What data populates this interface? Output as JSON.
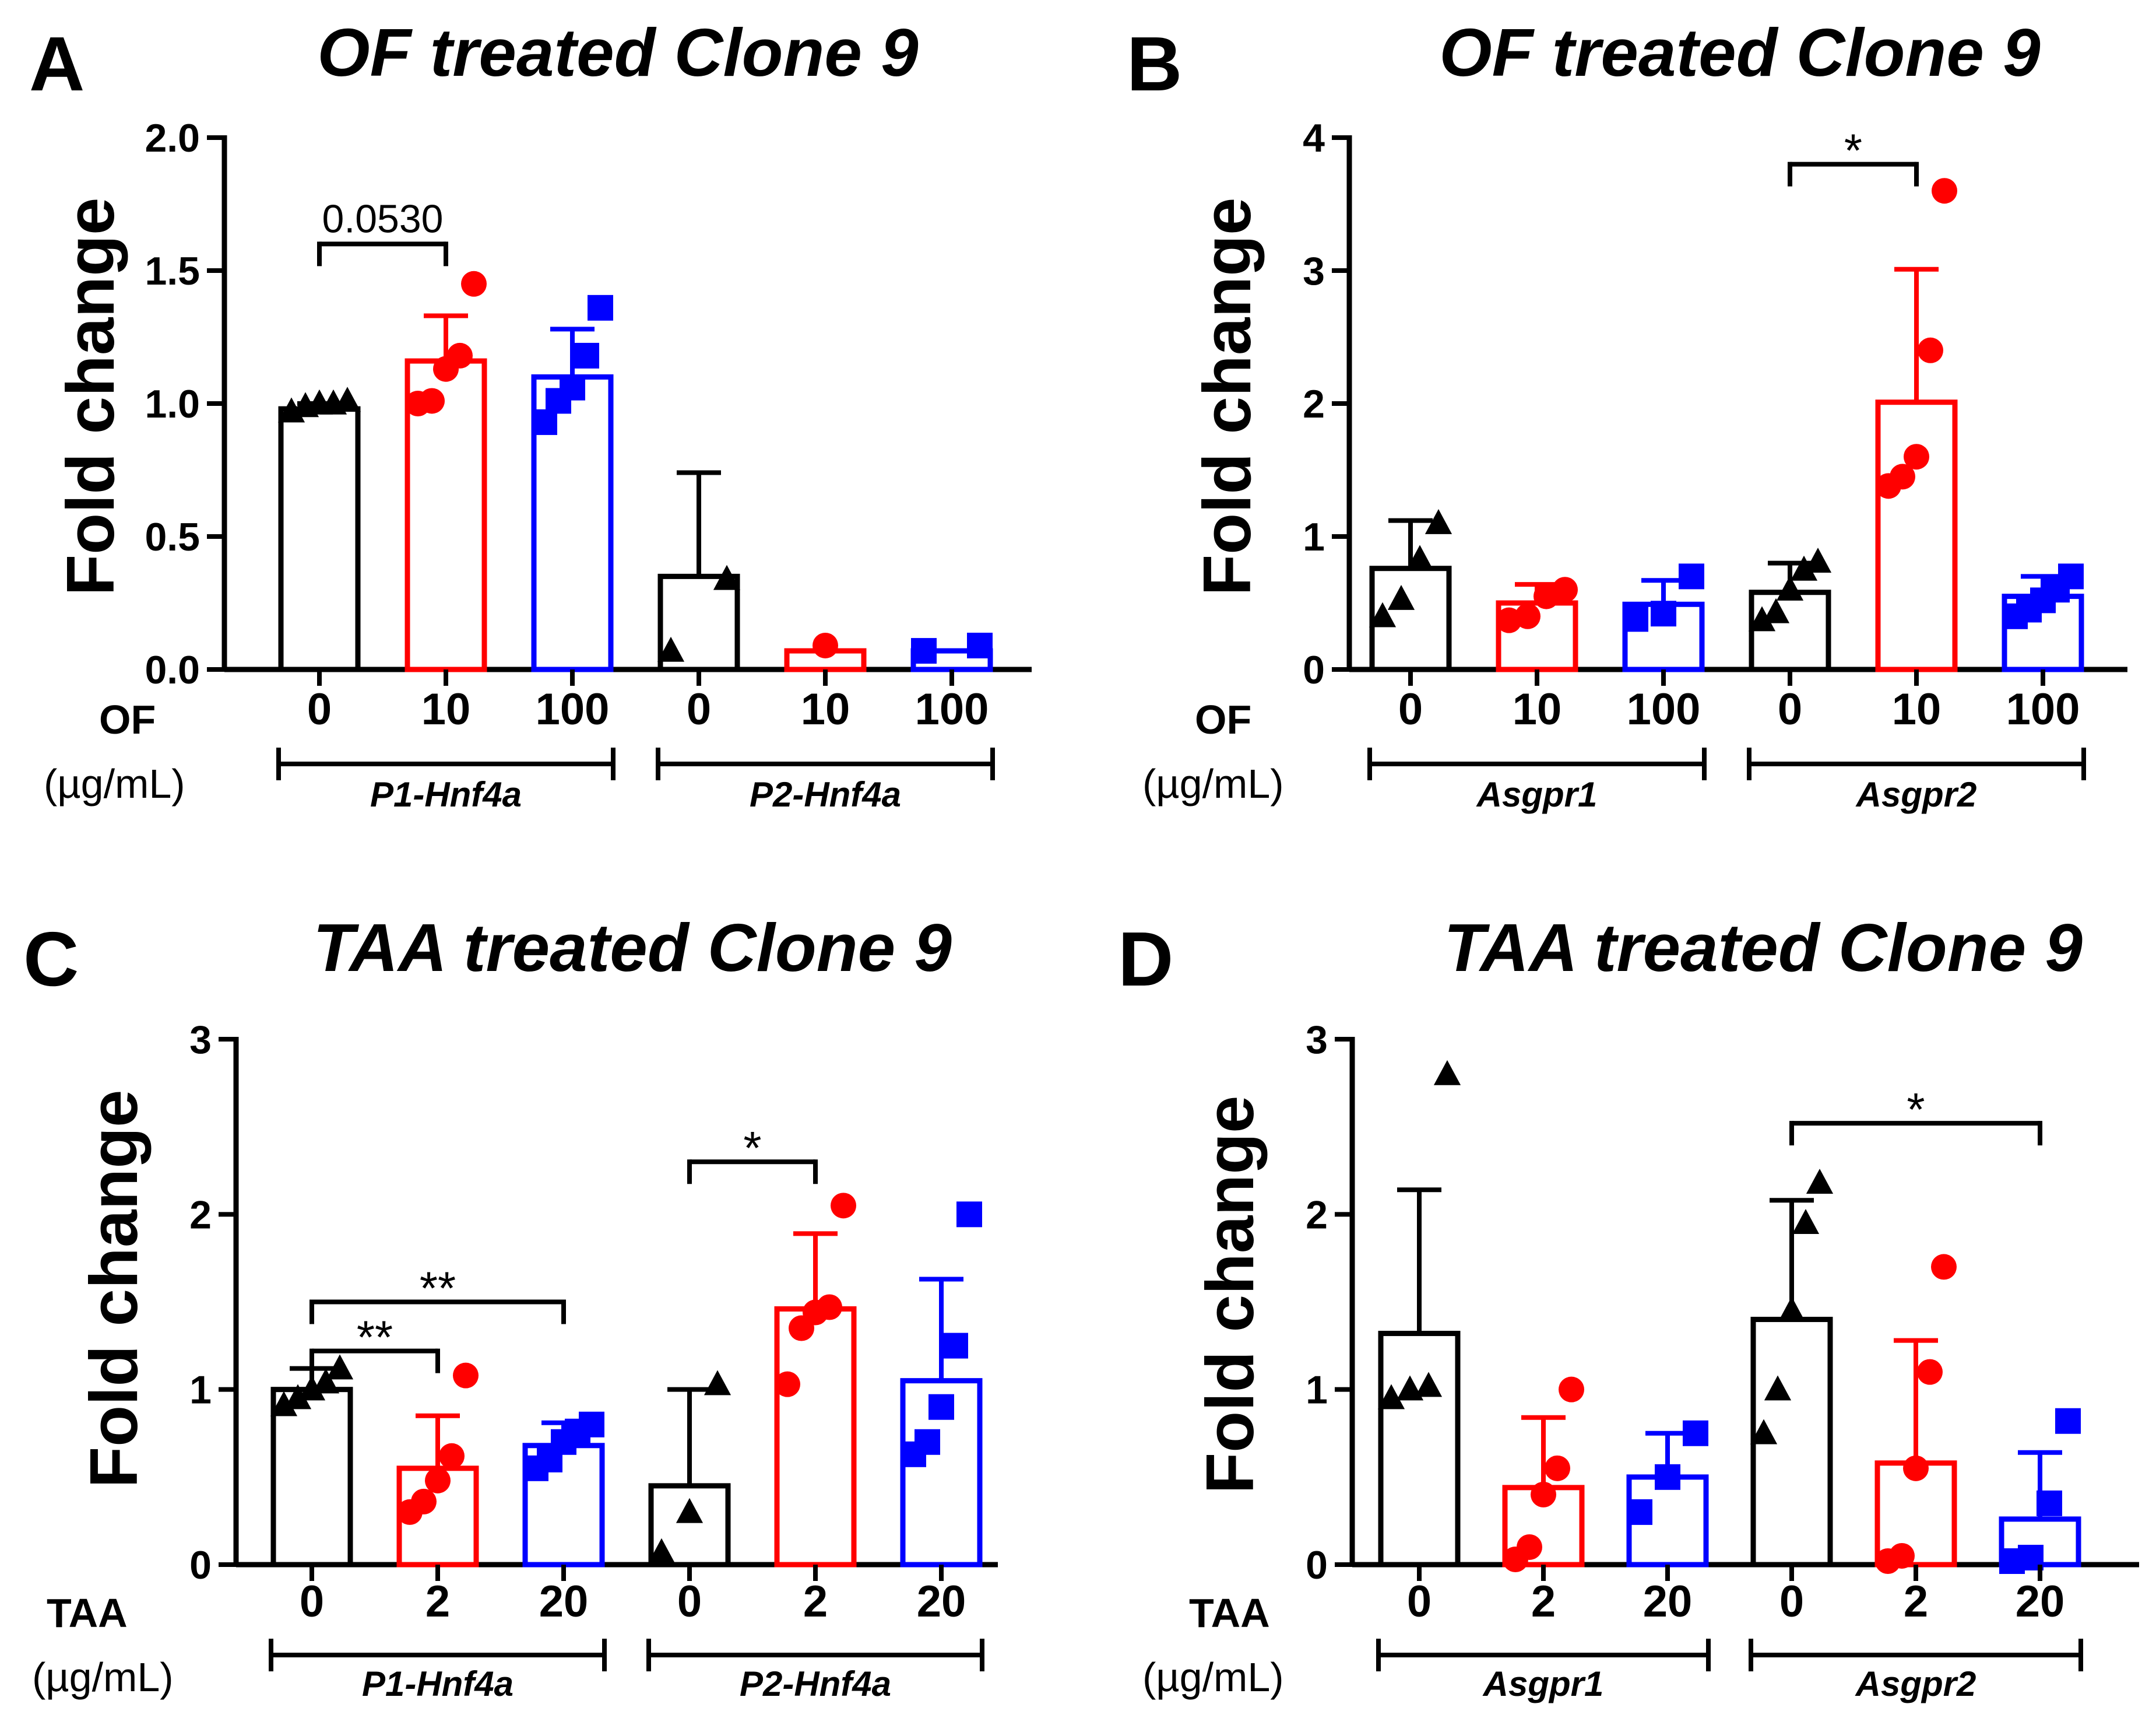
{
  "colors": {
    "control": "#000000",
    "low": "#ff0000",
    "high": "#0000ff",
    "axis": "#000000"
  },
  "chart_data": [
    {
      "type": "bar",
      "panel": "A",
      "title": "OF treated Clone 9",
      "ylabel": "Fold change",
      "ylim": [
        0,
        2.0
      ],
      "yticks": [
        0,
        0.5,
        1.0,
        1.5,
        2.0
      ],
      "ytick_labels": [
        "0.0",
        "0.5",
        "1.0",
        "1.5",
        "2.0"
      ],
      "treatment": "OF",
      "unit": "(µg/mL)",
      "categories": [
        "0",
        "10",
        "100",
        "0",
        "10",
        "100"
      ],
      "groups": [
        "P1-Hnf4a",
        "P2-Hnf4a"
      ],
      "series_colors": [
        "control",
        "low",
        "high",
        "control",
        "low",
        "high"
      ],
      "means": [
        0.98,
        1.16,
        1.1,
        0.35,
        0.07,
        0.07
      ],
      "sd": [
        0.02,
        0.17,
        0.18,
        0.39,
        0,
        0
      ],
      "points": [
        [
          0.97,
          0.99,
          1.0,
          1.0,
          1.01
        ],
        [
          1.0,
          1.01,
          1.13,
          1.18,
          1.45
        ],
        [
          0.93,
          1.01,
          1.06,
          1.18,
          1.36
        ],
        [
          0.07,
          0.34
        ],
        [
          0.09
        ],
        [
          0.07,
          0.09
        ]
      ],
      "markers": [
        "triangle",
        "circle",
        "square",
        "triangle",
        "circle",
        "square"
      ],
      "significance": [
        {
          "from": 0,
          "to": 1,
          "label": "0.0530",
          "y": 1.6
        }
      ]
    },
    {
      "type": "bar",
      "panel": "B",
      "title": "OF treated Clone 9",
      "ylabel": "Fold change",
      "ylim": [
        0,
        4
      ],
      "yticks": [
        0,
        1,
        2,
        3,
        4
      ],
      "ytick_labels": [
        "0",
        "1",
        "2",
        "3",
        "4"
      ],
      "treatment": "OF",
      "unit": "(µg/mL)",
      "categories": [
        "0",
        "10",
        "100",
        "0",
        "10",
        "100"
      ],
      "groups": [
        "Asgpr1",
        "Asgpr2"
      ],
      "series_colors": [
        "control",
        "low",
        "high",
        "control",
        "low",
        "high"
      ],
      "means": [
        0.76,
        0.5,
        0.49,
        0.58,
        2.01,
        0.55
      ],
      "sd": [
        0.36,
        0.14,
        0.18,
        0.22,
        1.0,
        0.15
      ],
      "points": [
        [
          0.4,
          0.53,
          0.83,
          1.1
        ],
        [
          0.37,
          0.4,
          0.55,
          0.6
        ],
        [
          0.38,
          0.42,
          0.7
        ],
        [
          0.37,
          0.43,
          0.6,
          0.75,
          0.81
        ],
        [
          1.38,
          1.45,
          1.6,
          2.4,
          3.6
        ],
        [
          0.4,
          0.45,
          0.52,
          0.6,
          0.7
        ]
      ],
      "markers": [
        "triangle",
        "circle",
        "square",
        "triangle",
        "circle",
        "square"
      ],
      "significance": [
        {
          "from": 3,
          "to": 4,
          "label": "*",
          "y": 3.8
        }
      ]
    },
    {
      "type": "bar",
      "panel": "C",
      "title": "TAA treated Clone 9",
      "ylabel": "Fold change",
      "ylim": [
        0,
        3
      ],
      "yticks": [
        0,
        1,
        2,
        3
      ],
      "ytick_labels": [
        "0",
        "1",
        "2",
        "3"
      ],
      "treatment": "TAA",
      "unit": "(µg/mL)",
      "categories": [
        "0",
        "2",
        "20",
        "0",
        "2",
        "20"
      ],
      "groups": [
        "P1-Hnf4a",
        "P2-Hnf4a"
      ],
      "series_colors": [
        "control",
        "low",
        "high",
        "control",
        "low",
        "high"
      ],
      "means": [
        1.0,
        0.55,
        0.68,
        0.45,
        1.46,
        1.05
      ],
      "sd": [
        0.12,
        0.3,
        0.13,
        0.55,
        0.43,
        0.58
      ],
      "points": [
        [
          0.91,
          0.95,
          1.0,
          1.04,
          1.12
        ],
        [
          0.3,
          0.36,
          0.48,
          0.62,
          1.08
        ],
        [
          0.55,
          0.6,
          0.7,
          0.76,
          0.8
        ],
        [
          0.07,
          0.3,
          1.03
        ],
        [
          1.03,
          1.35,
          1.44,
          1.47,
          2.05
        ],
        [
          0.63,
          0.7,
          0.9,
          1.25,
          2.0
        ]
      ],
      "markers": [
        "triangle",
        "circle",
        "square",
        "triangle",
        "circle",
        "square"
      ],
      "significance": [
        {
          "from": 0,
          "to": 1,
          "label": "**",
          "y": 1.22
        },
        {
          "from": 0,
          "to": 2,
          "label": "**",
          "y": 1.5
        },
        {
          "from": 3,
          "to": 4,
          "label": "*",
          "y": 2.3
        }
      ]
    },
    {
      "type": "bar",
      "panel": "D",
      "title": "TAA treated Clone 9",
      "ylabel": "Fold change",
      "ylim": [
        0,
        3
      ],
      "yticks": [
        0,
        1,
        2,
        3
      ],
      "ytick_labels": [
        "0",
        "1",
        "2",
        "3"
      ],
      "treatment": "TAA",
      "unit": "(µg/mL)",
      "categories": [
        "0",
        "2",
        "20",
        "0",
        "2",
        "20"
      ],
      "groups": [
        "Asgpr1",
        "Asgpr2"
      ],
      "series_colors": [
        "control",
        "low",
        "high",
        "control",
        "low",
        "high"
      ],
      "means": [
        1.32,
        0.44,
        0.5,
        1.4,
        0.58,
        0.26
      ],
      "sd": [
        0.82,
        0.4,
        0.25,
        0.68,
        0.7,
        0.38
      ],
      "points": [
        [
          0.95,
          1.0,
          1.02,
          2.8
        ],
        [
          0.03,
          0.1,
          0.4,
          0.55,
          1.0
        ],
        [
          0.3,
          0.5,
          0.75
        ],
        [
          0.75,
          1.0,
          1.45,
          1.95,
          2.18
        ],
        [
          0.02,
          0.05,
          0.55,
          1.1,
          1.7
        ],
        [
          0.02,
          0.04,
          0.35,
          0.82
        ]
      ],
      "markers": [
        "triangle",
        "circle",
        "square",
        "triangle",
        "circle",
        "square"
      ],
      "significance": [
        {
          "from": 3,
          "to": 5,
          "label": "*",
          "y": 2.52
        }
      ]
    }
  ]
}
